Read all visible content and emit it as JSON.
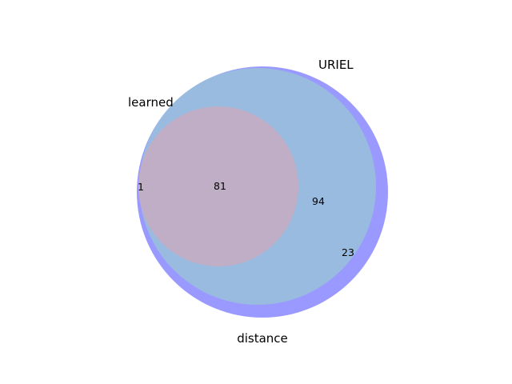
{
  "diagram": {
    "type": "venn3",
    "sets": [
      {
        "key": "uriel",
        "label": "URIEL",
        "color": "#9999ff"
      },
      {
        "key": "learned",
        "label": "learned",
        "color": "#e088e0"
      },
      {
        "key": "distance",
        "label": "distance",
        "color": "#99bbe0"
      }
    ],
    "regions": [
      {
        "key": "learned_only",
        "sets": [
          "learned"
        ],
        "value": "1"
      },
      {
        "key": "all_three",
        "sets": [
          "uriel",
          "learned",
          "distance"
        ],
        "value": "81"
      },
      {
        "key": "uriel_distance",
        "sets": [
          "uriel",
          "distance"
        ],
        "value": "94"
      },
      {
        "key": "uriel_only",
        "sets": [
          "uriel"
        ],
        "value": "23"
      }
    ]
  }
}
